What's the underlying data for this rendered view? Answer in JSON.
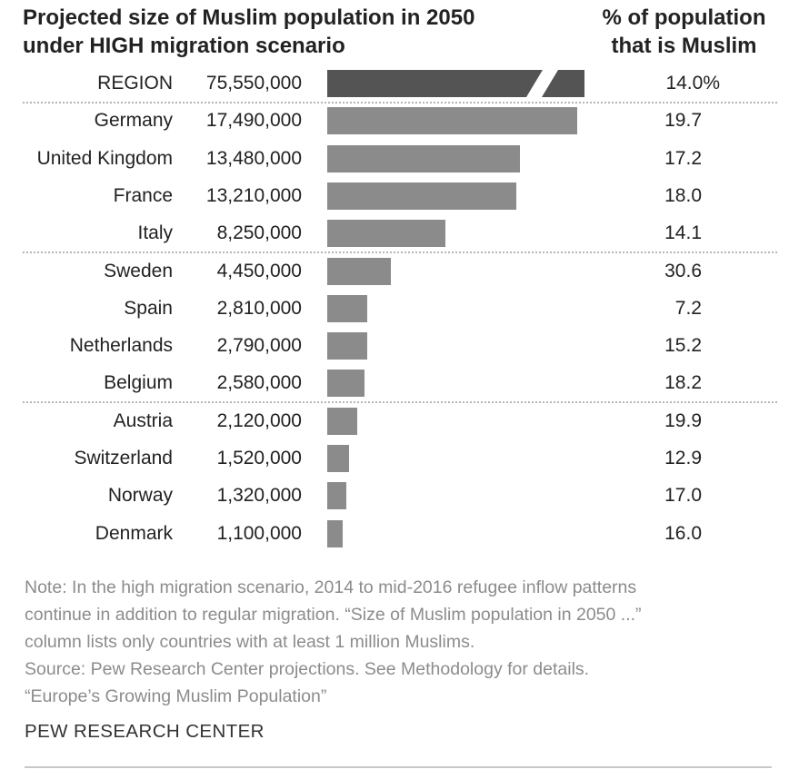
{
  "title_lines": [
    "Projected size of Muslim population in 2050",
    "under HIGH migration scenario"
  ],
  "column_title_lines": [
    "% of population",
    "that is Muslim"
  ],
  "chart_data": {
    "type": "bar",
    "orientation": "horizontal",
    "title": "Projected size of Muslim population in 2050 under HIGH migration scenario",
    "region": {
      "label": "REGION",
      "value": 75550000,
      "value_label": "75,550,000",
      "pct_label": "14.0%"
    },
    "categories": [
      "Germany",
      "United Kingdom",
      "France",
      "Italy",
      "Sweden",
      "Spain",
      "Netherlands",
      "Belgium",
      "Austria",
      "Switzerland",
      "Norway",
      "Denmark"
    ],
    "values": [
      17490000,
      13480000,
      13210000,
      8250000,
      4450000,
      2810000,
      2790000,
      2580000,
      2120000,
      1520000,
      1320000,
      1100000
    ],
    "value_labels": [
      "17,490,000",
      "13,480,000",
      "13,210,000",
      "8,250,000",
      "4,450,000",
      "2,810,000",
      "2,790,000",
      "2,580,000",
      "2,120,000",
      "1,520,000",
      "1,320,000",
      "1,100,000"
    ],
    "pct_labels": [
      "19.7",
      "17.2",
      "18.0",
      "14.1",
      "30.6",
      "7.2",
      "15.2",
      "18.2",
      "19.9",
      "12.9",
      "17.0",
      "16.0"
    ],
    "group_breaks_after": [
      3,
      7
    ],
    "xlim": [
      0,
      17490000
    ],
    "region_bar_truncated": true
  },
  "colors": {
    "bar": "#8b8b8b",
    "region_bar": "#545454",
    "divider": "#b5b5b5",
    "note": "#8c8c8c"
  },
  "note_lines": [
    "Note: In the high migration scenario, 2014 to mid-2016 refugee inflow patterns",
    "continue in addition to regular migration. “Size of Muslim population in 2050 ...”",
    "column lists only countries with at least 1 million Muslims.",
    "Source: Pew Research Center projections. See Methodology for details.",
    "“Europe’s Growing Muslim Population”"
  ],
  "brand": "PEW RESEARCH CENTER"
}
